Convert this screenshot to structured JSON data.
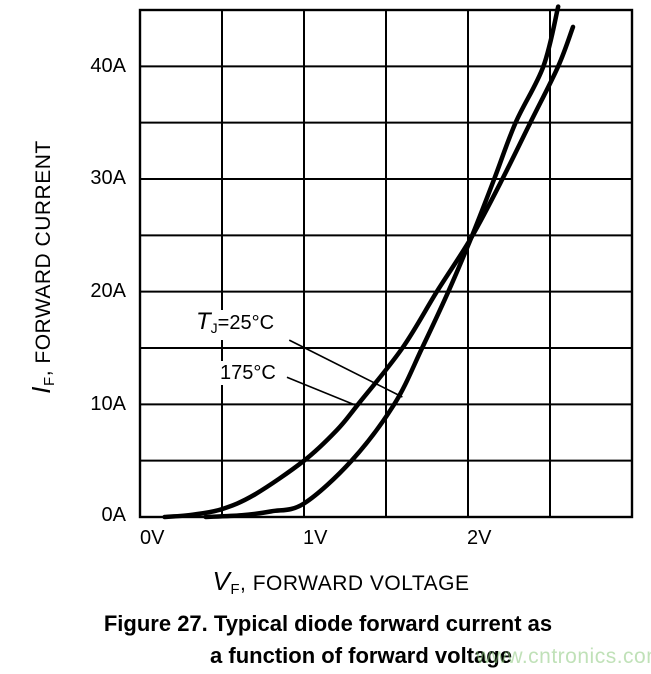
{
  "page": {
    "background": "#ffffff"
  },
  "caption": {
    "line1": "Figure 27. Typical diode forward current as",
    "line2": "a function of forward voltage"
  },
  "watermark": {
    "text": "www.cntronics.com",
    "color": "rgba(140,200,125,0.55)"
  },
  "chart_data": {
    "type": "line",
    "title": "Figure 27. Typical diode forward current as a function of forward voltage",
    "xlabel": {
      "sym": "V",
      "sub": "F",
      "rest": ", FORWARD VOLTAGE"
    },
    "ylabel": {
      "sym": "I",
      "sub": "F",
      "rest": ", FORWARD CURRENT"
    },
    "xlim": [
      0,
      3
    ],
    "ylim": [
      0,
      45
    ],
    "x_tick_step": 0.5,
    "y_tick_step": 5,
    "grid": true,
    "grid_color": "#000000",
    "line_color": "#000000",
    "x_ticks": [
      {
        "value": 0,
        "label": "0V"
      },
      {
        "value": 1,
        "label": "1V"
      },
      {
        "value": 2,
        "label": "2V"
      }
    ],
    "y_ticks": [
      {
        "value": 0,
        "label": "0A"
      },
      {
        "value": 10,
        "label": "10A"
      },
      {
        "value": 20,
        "label": "20A"
      },
      {
        "value": 30,
        "label": "30A"
      },
      {
        "value": 40,
        "label": "40A"
      }
    ],
    "series": [
      {
        "name": "TJ=25°C",
        "points": [
          [
            0.4,
            0
          ],
          [
            0.62,
            0.15
          ],
          [
            0.8,
            0.5
          ],
          [
            1.0,
            1.2
          ],
          [
            1.29,
            5
          ],
          [
            1.55,
            10
          ],
          [
            1.72,
            15
          ],
          [
            1.88,
            20
          ],
          [
            2.02,
            24.8
          ],
          [
            2.16,
            30
          ],
          [
            2.29,
            35
          ],
          [
            2.46,
            40
          ],
          [
            2.55,
            45.3
          ]
        ]
      },
      {
        "name": "175°C",
        "points": [
          [
            0.15,
            0
          ],
          [
            0.32,
            0.2
          ],
          [
            0.5,
            0.7
          ],
          [
            0.7,
            2.0
          ],
          [
            1.0,
            5
          ],
          [
            1.2,
            7.7
          ],
          [
            1.33,
            10
          ],
          [
            1.6,
            15
          ],
          [
            1.81,
            20
          ],
          [
            2.02,
            24.8
          ],
          [
            2.21,
            30
          ],
          [
            2.38,
            35
          ],
          [
            2.55,
            40
          ],
          [
            2.64,
            43.5
          ]
        ]
      }
    ],
    "annotations": [
      {
        "sym": "T",
        "sub": "J",
        "rest": "=25°C",
        "leader_from": [
          0.91,
          15.7
        ],
        "leader_to": [
          1.6,
          10.65
        ]
      },
      {
        "sym": "",
        "sub": "",
        "rest": "175°C",
        "leader_from": [
          0.896,
          12.4
        ],
        "leader_to": [
          1.302,
          10.0
        ]
      }
    ]
  }
}
